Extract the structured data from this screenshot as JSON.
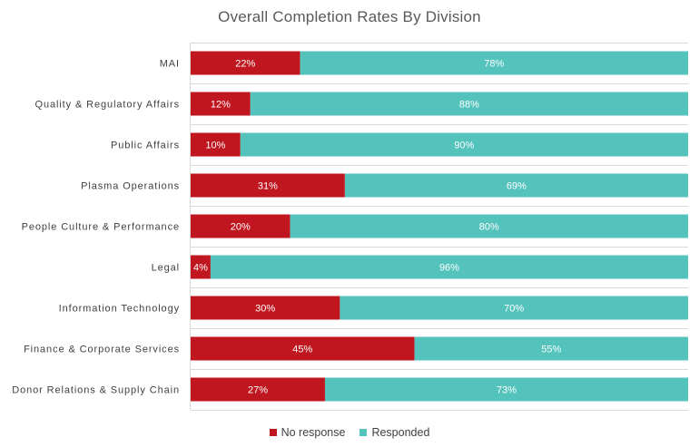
{
  "chart_data": {
    "type": "bar",
    "orientation": "horizontal",
    "stacked": true,
    "title": "Overall Completion Rates By Division",
    "categories": [
      "MAI",
      "Quality & Regulatory Affairs",
      "Public Affairs",
      "Plasma Operations",
      "People Culture & Performance",
      "Legal",
      "Information Technology",
      "Finance & Corporate Services",
      "Donor Relations & Supply Chain"
    ],
    "series": [
      {
        "name": "No response",
        "color": "#c0161f",
        "values": [
          22,
          12,
          10,
          31,
          20,
          4,
          30,
          45,
          27
        ],
        "labels": [
          "22%",
          "12%",
          "10%",
          "31%",
          "20%",
          "4%",
          "30%",
          "45%",
          "27%"
        ]
      },
      {
        "name": "Responded",
        "color": "#54c3bc",
        "values": [
          78,
          88,
          90,
          69,
          80,
          96,
          70,
          55,
          73
        ],
        "labels": [
          "78%",
          "88%",
          "90%",
          "69%",
          "80%",
          "96%",
          "70%",
          "55%",
          "73%"
        ]
      }
    ],
    "xlim": [
      0,
      100
    ],
    "grid": true,
    "legend_position": "bottom"
  }
}
